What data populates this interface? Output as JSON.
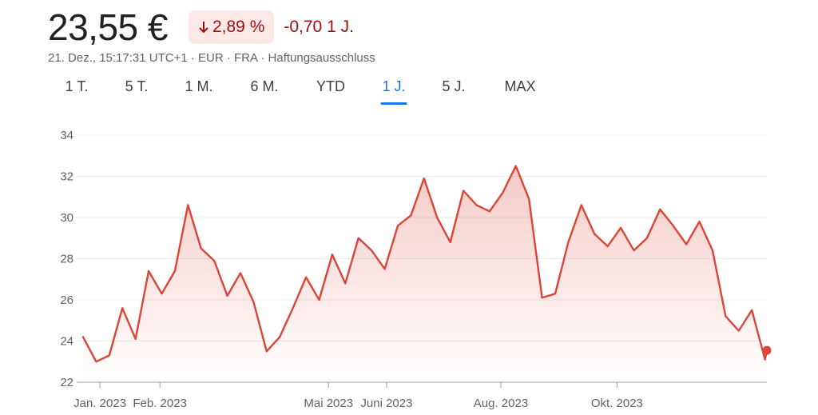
{
  "header": {
    "price": "23,55 €",
    "change_pct": "2,89 %",
    "change_abs": "-0,70 1 J.",
    "meta": "21. Dez., 15:17:31 UTC+1 · EUR · FRA · Haftungsausschluss"
  },
  "tabs": [
    {
      "label": "1 T."
    },
    {
      "label": "5 T."
    },
    {
      "label": "1 M."
    },
    {
      "label": "6 M."
    },
    {
      "label": "YTD"
    },
    {
      "label": "1 J.",
      "active": true
    },
    {
      "label": "5 J."
    },
    {
      "label": "MAX"
    }
  ],
  "colors": {
    "line": "#db4437",
    "badge_bg": "#fce8e6",
    "negative_text": "#a50e0e",
    "active_tab": "#1a73e8"
  },
  "chart_data": {
    "type": "area",
    "title": "",
    "xlabel": "",
    "ylabel": "",
    "ylim": [
      22,
      34
    ],
    "yticks": [
      "22",
      "24",
      "26",
      "28",
      "30",
      "32",
      "34"
    ],
    "xticks": [
      "Jan. 2023",
      "Feb. 2023",
      "Mai 2023",
      "Juni 2023",
      "Aug. 2023",
      "Okt. 2023"
    ],
    "grid": true,
    "x": [
      "2022-12-21",
      "2022-12-28",
      "2023-01-04",
      "2023-01-11",
      "2023-01-18",
      "2023-01-25",
      "2023-02-01",
      "2023-02-08",
      "2023-02-15",
      "2023-02-22",
      "2023-03-01",
      "2023-03-08",
      "2023-03-15",
      "2023-03-22",
      "2023-03-29",
      "2023-04-05",
      "2023-04-12",
      "2023-04-19",
      "2023-04-26",
      "2023-05-03",
      "2023-05-10",
      "2023-05-17",
      "2023-05-24",
      "2023-05-31",
      "2023-06-07",
      "2023-06-14",
      "2023-06-21",
      "2023-06-28",
      "2023-07-05",
      "2023-07-12",
      "2023-07-19",
      "2023-07-26",
      "2023-08-02",
      "2023-08-09",
      "2023-08-16",
      "2023-08-23",
      "2023-08-30",
      "2023-09-06",
      "2023-09-13",
      "2023-09-20",
      "2023-09-27",
      "2023-10-04",
      "2023-10-11",
      "2023-10-18",
      "2023-10-25",
      "2023-11-01",
      "2023-11-08",
      "2023-11-15",
      "2023-11-22",
      "2023-11-29",
      "2023-12-06",
      "2023-12-13",
      "2023-12-20",
      "2023-12-21"
    ],
    "series": [
      {
        "values": [
          24.2,
          23.0,
          23.3,
          25.6,
          24.1,
          27.4,
          26.3,
          27.4,
          30.6,
          28.5,
          27.9,
          26.2,
          27.3,
          25.9,
          23.5,
          24.2,
          25.6,
          27.1,
          26.0,
          28.2,
          26.8,
          29.0,
          28.4,
          27.5,
          29.6,
          30.1,
          31.9,
          30.0,
          28.8,
          31.3,
          30.6,
          30.3,
          31.2,
          32.5,
          30.9,
          26.1,
          26.3,
          28.8,
          30.6,
          29.2,
          28.6,
          29.5,
          28.4,
          29.0,
          30.4,
          29.6,
          28.7,
          29.8,
          28.4,
          25.2,
          24.5,
          25.5,
          23.1,
          23.55
        ]
      }
    ]
  }
}
